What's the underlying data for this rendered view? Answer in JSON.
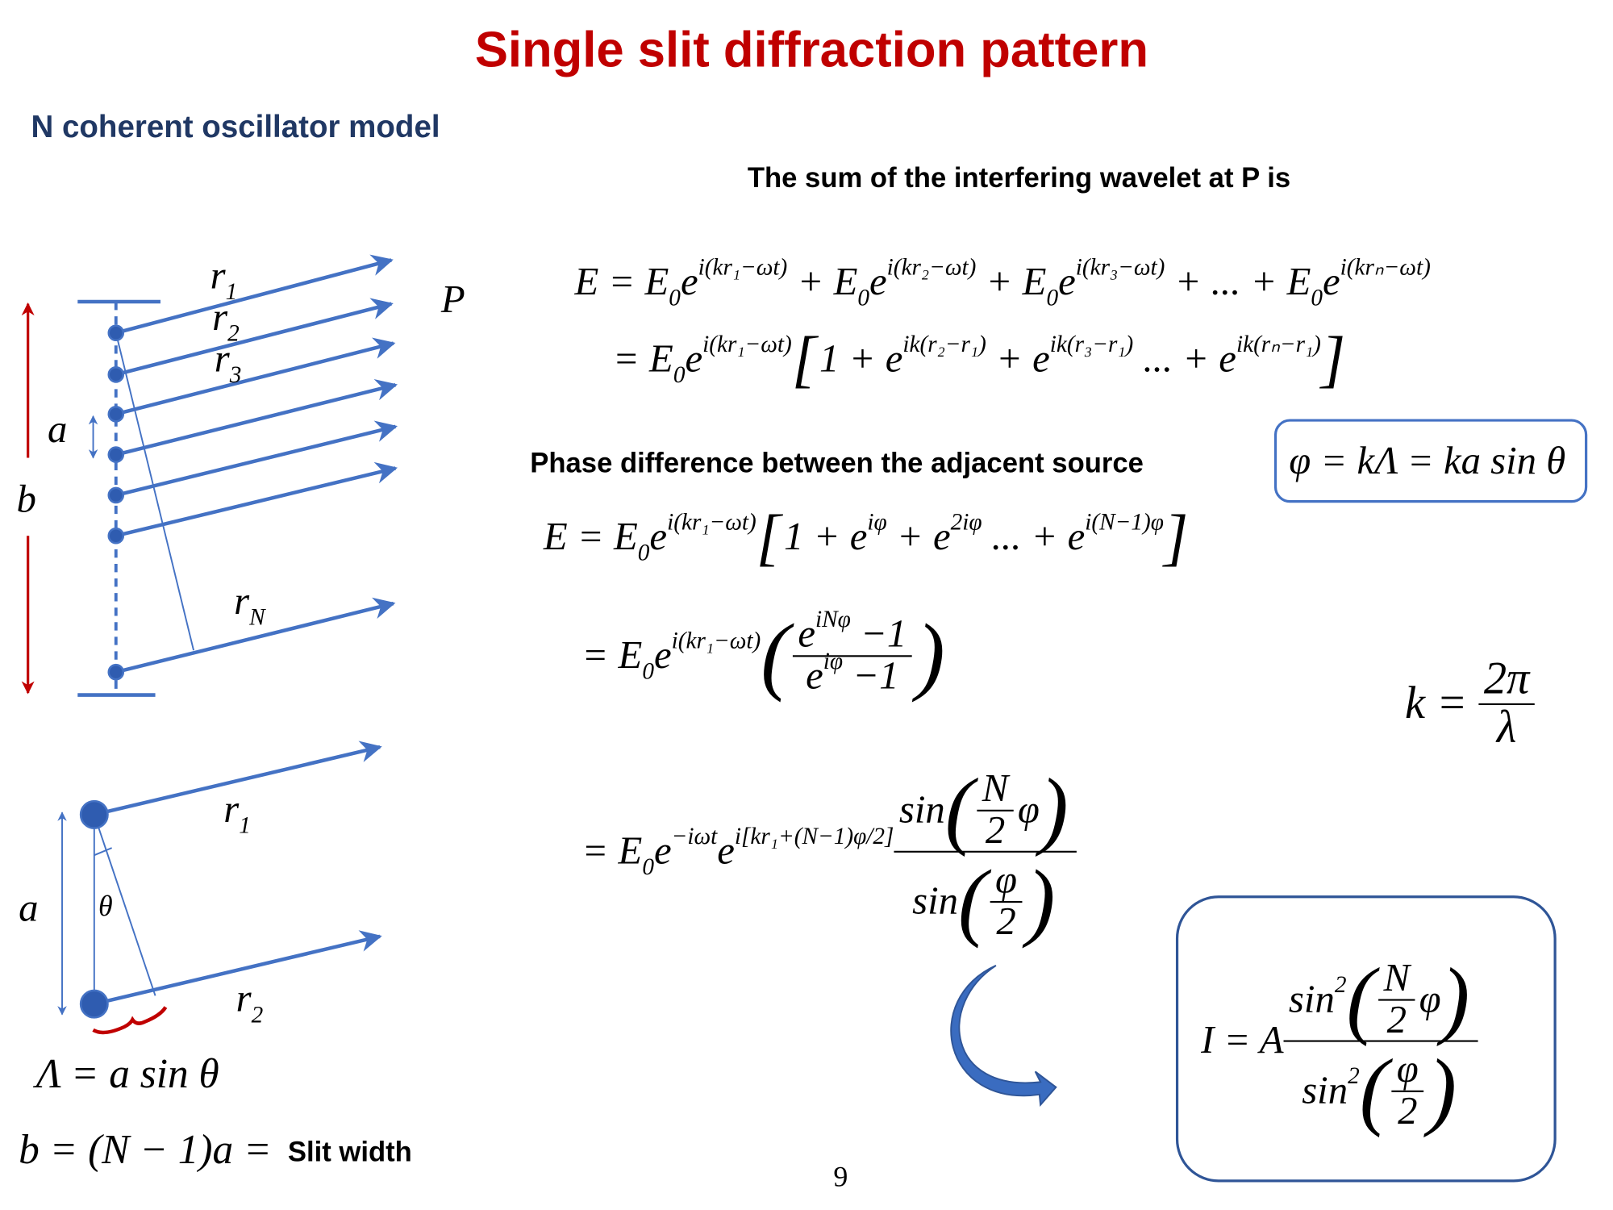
{
  "header": {
    "title": "Single slit diffraction pattern",
    "subtitle": "N coherent oscillator model",
    "sum_heading": "The sum of the interfering wavelet at P is",
    "phase_heading": "Phase difference between the adjacent source"
  },
  "diagram": {
    "top": {
      "r1": [
        {
          "text": "r"
        },
        {
          "text": "1",
          "pos": "sub"
        }
      ],
      "r2": [
        {
          "text": "r"
        },
        {
          "text": "2",
          "pos": "sub"
        }
      ],
      "r3": [
        {
          "text": "r"
        },
        {
          "text": "3",
          "pos": "sub"
        }
      ],
      "rN": [
        {
          "text": "r"
        },
        {
          "text": "N",
          "pos": "sub"
        }
      ],
      "P": [
        {
          "text": "P"
        }
      ],
      "a": [
        {
          "text": "a"
        }
      ],
      "b": [
        {
          "text": "b"
        }
      ]
    },
    "bottom": {
      "r1": [
        {
          "text": "r"
        },
        {
          "text": "1",
          "pos": "sub"
        }
      ],
      "r2": [
        {
          "text": "r"
        },
        {
          "text": "2",
          "pos": "sub"
        }
      ],
      "a": [
        {
          "text": "a"
        }
      ],
      "theta": [
        {
          "text": "θ"
        }
      ]
    }
  },
  "formulas": {
    "eq1": [
      {
        "text": "E = E"
      },
      {
        "text": "0",
        "pos": "sub"
      },
      {
        "text": "e"
      },
      {
        "text": "i(kr₁−ωt)",
        "pos": "sup"
      },
      {
        "text": " + E"
      },
      {
        "text": "0",
        "pos": "sub"
      },
      {
        "text": "e"
      },
      {
        "text": "i(kr₂−ωt)",
        "pos": "sup"
      },
      {
        "text": " + E"
      },
      {
        "text": "0",
        "pos": "sub"
      },
      {
        "text": "e"
      },
      {
        "text": "i(kr₃−ωt)",
        "pos": "sup"
      },
      {
        "text": " + ... + E"
      },
      {
        "text": "0",
        "pos": "sub"
      },
      {
        "text": "e"
      },
      {
        "text": "i(krₙ−ωt)",
        "pos": "sup"
      }
    ],
    "eq2": [
      {
        "text": "= E"
      },
      {
        "text": "0",
        "pos": "sub"
      },
      {
        "text": "e"
      },
      {
        "text": "i(kr₁−ωt)",
        "pos": "sup"
      },
      {
        "text": "[",
        "pos": "big"
      },
      {
        "text": "1 + e"
      },
      {
        "text": "ik(r₂−r₁)",
        "pos": "sup"
      },
      {
        "text": " + e"
      },
      {
        "text": "ik(r₃−r₁)",
        "pos": "sup"
      },
      {
        "text": " ... + e"
      },
      {
        "text": "ik(rₙ−r₁)",
        "pos": "sup"
      },
      {
        "text": "]",
        "pos": "big"
      }
    ],
    "phase": [
      {
        "text": "φ = kΛ = ka sin θ"
      }
    ],
    "eq3": [
      {
        "text": "E = E"
      },
      {
        "text": "0",
        "pos": "sub"
      },
      {
        "text": "e"
      },
      {
        "text": "i(kr₁−ωt)",
        "pos": "sup"
      },
      {
        "text": "[",
        "pos": "big"
      },
      {
        "text": "1 + e"
      },
      {
        "text": "iφ",
        "pos": "sup"
      },
      {
        "text": " + e"
      },
      {
        "text": "2iφ",
        "pos": "sup"
      },
      {
        "text": " ... + e"
      },
      {
        "text": "i(N−1)φ",
        "pos": "sup"
      },
      {
        "text": "]",
        "pos": "big"
      }
    ],
    "eq4": [
      {
        "text": "= E"
      },
      {
        "text": "0",
        "pos": "sub"
      },
      {
        "text": "e"
      },
      {
        "text": "i(kr₁−ωt)",
        "pos": "sup"
      },
      {
        "text": "(",
        "pos": "big"
      },
      {
        "frac": {
          "num": [
            {
              "text": "e"
            },
            {
              "text": "iNφ",
              "pos": "sup"
            },
            {
              "text": " −1"
            }
          ],
          "den": [
            {
              "text": "e"
            },
            {
              "text": "iφ",
              "pos": "sup"
            },
            {
              "text": " −1"
            }
          ]
        }
      },
      {
        "text": ")",
        "pos": "big"
      }
    ],
    "k": [
      {
        "text": "k = "
      },
      {
        "frac": {
          "num": [
            {
              "text": "2π"
            }
          ],
          "den": [
            {
              "text": "λ"
            }
          ]
        }
      }
    ],
    "eq5": [
      {
        "text": "= E"
      },
      {
        "text": "0",
        "pos": "sub"
      },
      {
        "text": "e"
      },
      {
        "text": "−iωt",
        "pos": "sup"
      },
      {
        "text": "e"
      },
      {
        "text": "i[kr₁+(N−1)φ/2]",
        "pos": "sup"
      },
      {
        "frac": {
          "num": [
            {
              "text": "sin"
            },
            {
              "text": "(",
              "pos": "big"
            },
            {
              "frac": {
                "num": [
                  {
                    "text": "N"
                  }
                ],
                "den": [
                  {
                    "text": "2"
                  }
                ]
              }
            },
            {
              "text": "φ"
            },
            {
              "text": ")",
              "pos": "big"
            }
          ],
          "den": [
            {
              "text": "sin"
            },
            {
              "text": "(",
              "pos": "big"
            },
            {
              "frac": {
                "num": [
                  {
                    "text": "φ"
                  }
                ],
                "den": [
                  {
                    "text": "2"
                  }
                ]
              }
            },
            {
              "text": ")",
              "pos": "big"
            }
          ]
        }
      }
    ],
    "intensity": [
      {
        "text": "I = A"
      },
      {
        "frac": {
          "num": [
            {
              "text": "sin"
            },
            {
              "text": "2",
              "pos": "sup"
            },
            {
              "text": "(",
              "pos": "big"
            },
            {
              "frac": {
                "num": [
                  {
                    "text": "N"
                  }
                ],
                "den": [
                  {
                    "text": "2"
                  }
                ]
              }
            },
            {
              "text": "φ"
            },
            {
              "text": ")",
              "pos": "big"
            }
          ],
          "den": [
            {
              "text": "sin"
            },
            {
              "text": "2",
              "pos": "sup"
            },
            {
              "text": "(",
              "pos": "big"
            },
            {
              "frac": {
                "num": [
                  {
                    "text": "φ"
                  }
                ],
                "den": [
                  {
                    "text": "2"
                  }
                ]
              }
            },
            {
              "text": ")",
              "pos": "big"
            }
          ]
        }
      }
    ],
    "lambda": [
      {
        "text": "Λ = a sin θ"
      }
    ],
    "width": [
      {
        "text": "b = (N − 1)a = "
      }
    ]
  },
  "footer": {
    "slit_width": "Slit width",
    "page_number": "9"
  }
}
